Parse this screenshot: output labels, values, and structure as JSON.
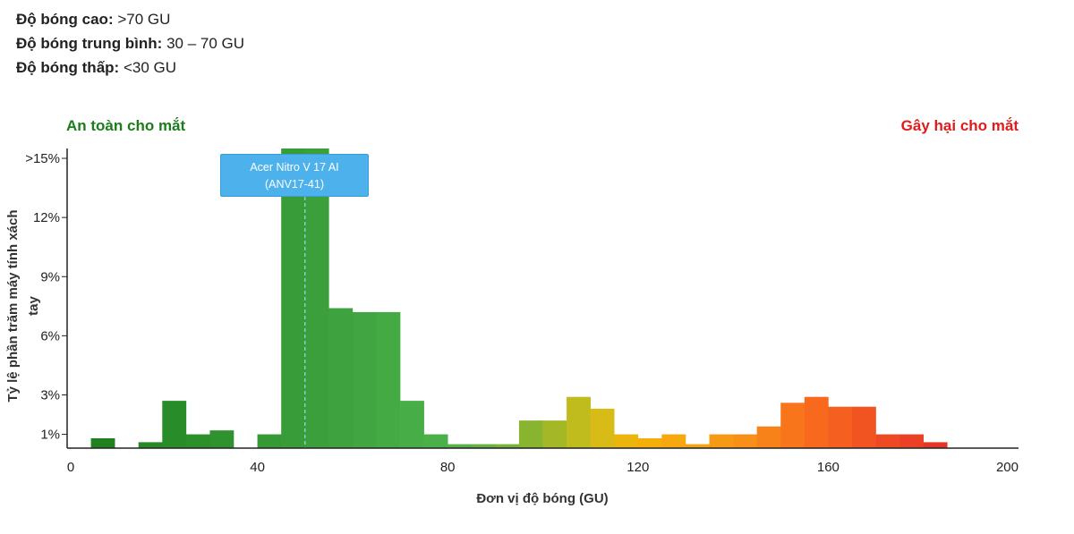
{
  "legend": [
    {
      "label": "Độ bóng cao:",
      "value": ">70 GU"
    },
    {
      "label": "Độ bóng trung bình:",
      "value": "30 – 70 GU"
    },
    {
      "label": "Độ bóng thấp:",
      "value": "<30 GU"
    }
  ],
  "safe_label": "An toàn cho mắt",
  "harm_label": "Gây hại cho mắt",
  "tooltip": {
    "line1": "Acer Nitro V 17 AI",
    "line2": "(ANV17-41)"
  },
  "marker_x": 50,
  "colors": {
    "safe": "#1a7d1a",
    "harm": "#e01b1b",
    "tooltip": "#4db2ec"
  },
  "chart_data": {
    "type": "bar",
    "xlabel": "Đơn vị độ bóng (GU)",
    "ylabel": "Tỷ lệ phần trăm máy tính xách tay",
    "xlim": [
      0,
      200
    ],
    "xticks": [
      0,
      40,
      80,
      120,
      160,
      200
    ],
    "yticks": [
      {
        "value": 1,
        "label": "1%"
      },
      {
        "value": 3,
        "label": "3%"
      },
      {
        "value": 6,
        "label": "6%"
      },
      {
        "value": 9,
        "label": "9%"
      },
      {
        "value": 12,
        "label": "12%"
      },
      {
        "value": 15,
        "label": ">15%"
      }
    ],
    "ylim": [
      0.3,
      15.5
    ],
    "bin_width": 5,
    "bins": [
      {
        "x": 5,
        "value": 0.8
      },
      {
        "x": 15,
        "value": 0.6
      },
      {
        "x": 20,
        "value": 2.7
      },
      {
        "x": 25,
        "value": 1.0
      },
      {
        "x": 30,
        "value": 1.2
      },
      {
        "x": 40,
        "value": 1.0
      },
      {
        "x": 45,
        "value": 15.5
      },
      {
        "x": 50,
        "value": 15.5
      },
      {
        "x": 55,
        "value": 7.4
      },
      {
        "x": 60,
        "value": 7.2
      },
      {
        "x": 65,
        "value": 7.2
      },
      {
        "x": 70,
        "value": 2.7
      },
      {
        "x": 75,
        "value": 1.0
      },
      {
        "x": 80,
        "value": 0.5
      },
      {
        "x": 85,
        "value": 0.5
      },
      {
        "x": 90,
        "value": 0.5
      },
      {
        "x": 95,
        "value": 1.7
      },
      {
        "x": 100,
        "value": 1.7
      },
      {
        "x": 105,
        "value": 2.9
      },
      {
        "x": 110,
        "value": 2.3
      },
      {
        "x": 115,
        "value": 1.0
      },
      {
        "x": 120,
        "value": 0.8
      },
      {
        "x": 125,
        "value": 1.0
      },
      {
        "x": 130,
        "value": 0.5
      },
      {
        "x": 135,
        "value": 1.0
      },
      {
        "x": 140,
        "value": 1.0
      },
      {
        "x": 145,
        "value": 1.4
      },
      {
        "x": 150,
        "value": 2.6
      },
      {
        "x": 155,
        "value": 2.9
      },
      {
        "x": 160,
        "value": 2.4
      },
      {
        "x": 165,
        "value": 2.4
      },
      {
        "x": 170,
        "value": 1.0
      },
      {
        "x": 175,
        "value": 1.0
      },
      {
        "x": 180,
        "value": 0.6
      }
    ]
  }
}
